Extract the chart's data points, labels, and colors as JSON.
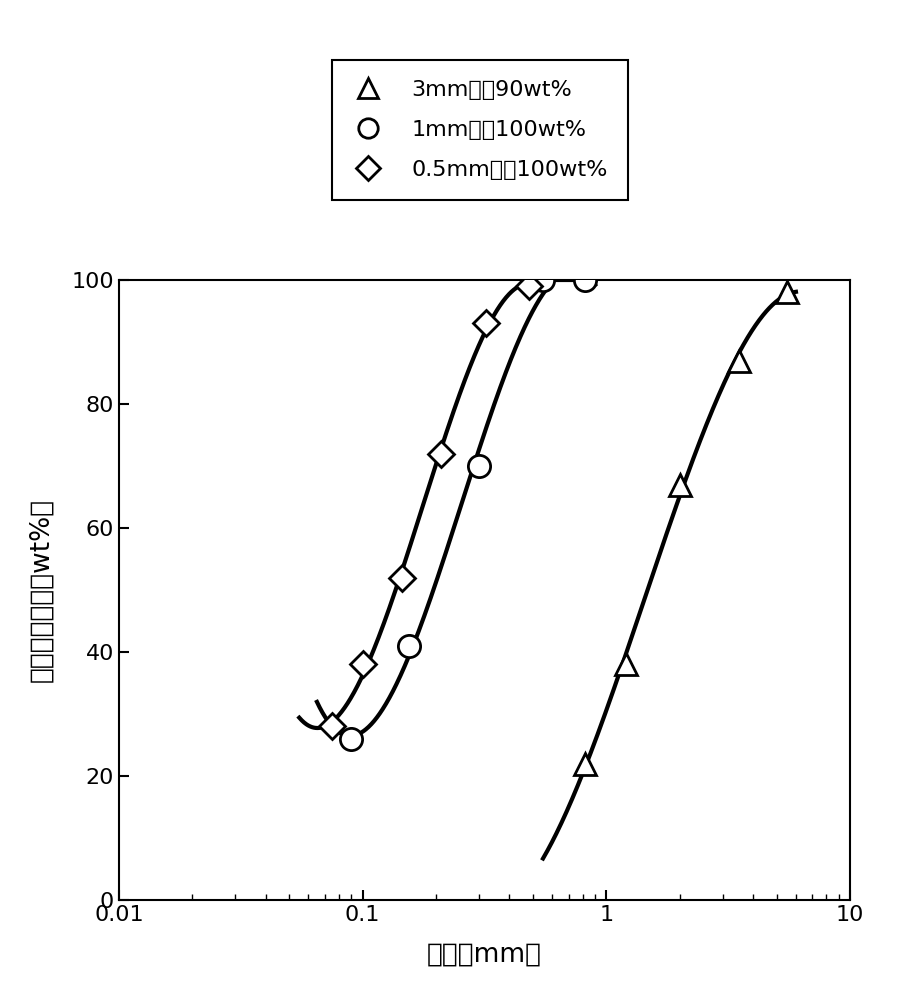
{
  "xlabel": "粒径［mm］",
  "ylabel": "比例（累積）［wt%］",
  "ylim": [
    0,
    100
  ],
  "xlim": [
    0.01,
    10
  ],
  "legend_labels_display": [
    "3mm以下90wt%",
    "1mm以下100wt%",
    "0.5mm以下100wt%"
  ],
  "series": [
    {
      "name": "3mm以下90wt%",
      "marker": "^",
      "x": [
        0.82,
        1.2,
        2.0,
        3.5,
        5.5
      ],
      "y": [
        22,
        38,
        67,
        87,
        98
      ],
      "color": "black",
      "markersize": 16,
      "linewidth": 3.0,
      "curve_x_start": 0.55,
      "curve_x_end": 6.0
    },
    {
      "name": "1mm以下100wt%",
      "marker": "o",
      "x": [
        0.09,
        0.155,
        0.3,
        0.55,
        0.82
      ],
      "y": [
        26,
        41,
        70,
        100,
        100
      ],
      "color": "black",
      "markersize": 16,
      "linewidth": 3.0,
      "curve_x_start": 0.065,
      "curve_x_end": 0.9
    },
    {
      "name": "0.5mm以下100wt%",
      "marker": "D",
      "x": [
        0.075,
        0.1,
        0.145,
        0.21,
        0.32,
        0.48
      ],
      "y": [
        28,
        38,
        52,
        72,
        93,
        99
      ],
      "color": "black",
      "markersize": 13,
      "linewidth": 3.0,
      "curve_x_start": 0.055,
      "curve_x_end": 0.52
    }
  ],
  "background_color": "#ffffff",
  "legend_markers": [
    "^",
    "o",
    "D"
  ],
  "legend_marker_sizes": [
    14,
    14,
    12
  ]
}
